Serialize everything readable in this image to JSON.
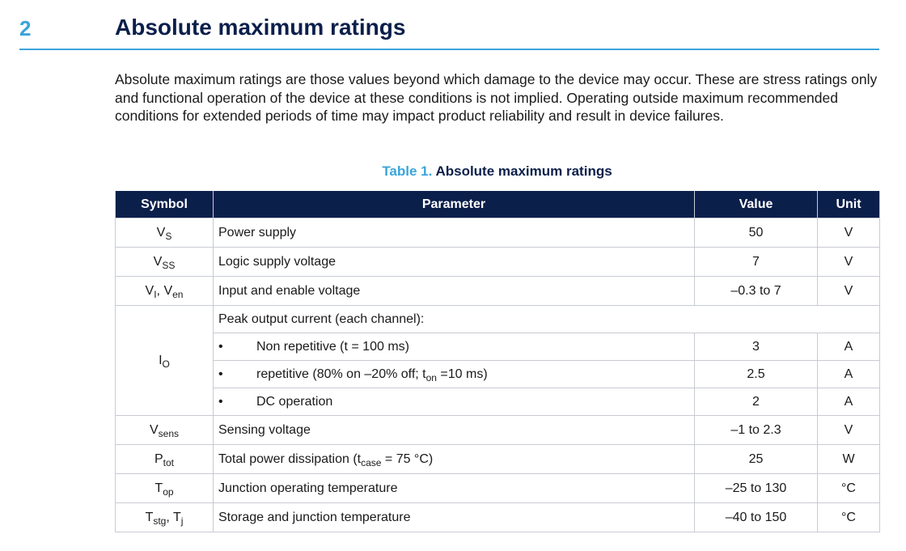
{
  "section": {
    "number": "2",
    "title": "Absolute maximum ratings",
    "intro": "Absolute maximum ratings are those values beyond which damage to the device may occur. These are stress ratings only and functional operation of the device at these conditions is not implied. Operating outside maximum recommended conditions for extended periods of time may impact product reliability and result in device failures."
  },
  "table": {
    "caption_label": "Table 1.",
    "caption_title": "Absolute maximum ratings",
    "headers": {
      "symbol": "Symbol",
      "parameter": "Parameter",
      "value": "Value",
      "unit": "Unit"
    },
    "rows": {
      "vs": {
        "sym": "V",
        "sub": "S",
        "param": "Power supply",
        "value": "50",
        "unit": "V"
      },
      "vss": {
        "sym": "V",
        "sub": "SS",
        "param": "Logic supply voltage",
        "value": "7",
        "unit": "V"
      },
      "vi": {
        "sym1": "V",
        "sub1": "I",
        "sep": ", ",
        "sym2": "V",
        "sub2": "en",
        "param": "Input and enable voltage",
        "value": "–0.3 to 7",
        "unit": "V"
      },
      "io": {
        "sym": "I",
        "sub": "O",
        "param": "Peak output current (each channel):",
        "bullet": "•",
        "items": [
          {
            "param": "Non repetitive (t = 100 ms)",
            "value": "3",
            "unit": "A"
          },
          {
            "param_a": "repetitive (80% on –20% off; t",
            "param_sub": "on",
            "param_b": " =10 ms)",
            "value": "2.5",
            "unit": "A"
          },
          {
            "param": "DC operation",
            "value": "2",
            "unit": "A"
          }
        ]
      },
      "vsens": {
        "sym": "V",
        "sub": "sens",
        "param": "Sensing voltage",
        "value": "–1 to 2.3",
        "unit": "V"
      },
      "ptot": {
        "sym": "P",
        "sub": "tot",
        "param_a": "Total power dissipation (t",
        "param_sub": "case",
        "param_b": " = 75 °C)",
        "value": "25",
        "unit": "W"
      },
      "top": {
        "sym": "T",
        "sub": "op",
        "param": "Junction operating temperature",
        "value": "–25 to 130",
        "unit": "°C"
      },
      "tstg": {
        "sym1": "T",
        "sub1": "stg",
        "sep": ", ",
        "sym2": "T",
        "sub2": "j",
        "param": "Storage and junction temperature",
        "value": "–40 to 150",
        "unit": "°C"
      }
    }
  }
}
